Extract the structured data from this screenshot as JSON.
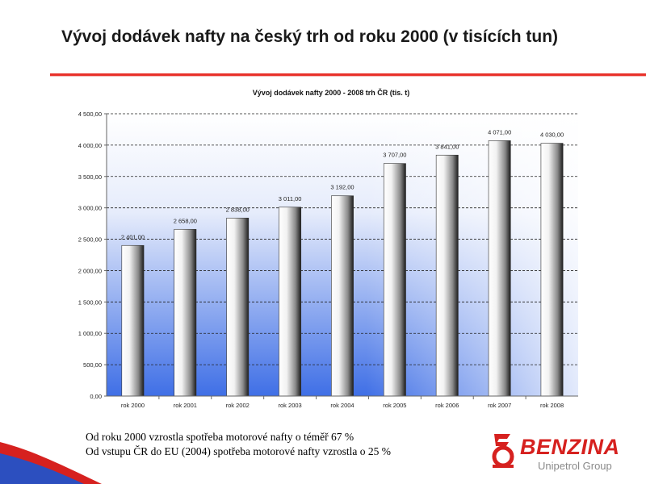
{
  "slide": {
    "title": "Vývoj dodávek nafty na český trh od roku 2000 (v tisících tun)",
    "notes": [
      "Od roku 2000 vzrostla spotřeba motorové nafty o téměř 67 %",
      "Od vstupu ČR do EU (2004) spotřeba motorové nafty vzrostla o 25 %"
    ]
  },
  "brand": {
    "name": "BENZINA",
    "subtitle": "Unipetrol Group",
    "color": "#d6211f"
  },
  "colors": {
    "accent_rule": "#e8312a",
    "plot_gradient_top": "#ffffff",
    "plot_gradient_bottom": "#3f6fe6"
  },
  "chart_data": {
    "type": "bar",
    "title": "Vývoj dodávek nafty 2000 - 2008 trh ČR (tis. t)",
    "xlabel": "",
    "ylabel": "",
    "categories": [
      "rok 2000",
      "rok 2001",
      "rok 2002",
      "rok 2003",
      "rok 2004",
      "rok 2005",
      "rok 2006",
      "rok 2007",
      "rok 2008"
    ],
    "values": [
      2401,
      2658,
      2838,
      3011,
      3192,
      3707,
      3841,
      4071,
      4030
    ],
    "data_labels": [
      "2 401,00",
      "2 658,00",
      "2 838,00",
      "3 011,00",
      "3 192,00",
      "3 707,00",
      "3 841,00",
      "4 071,00",
      "4 030,00"
    ],
    "ylim": [
      0,
      4500
    ],
    "yticks": [
      0,
      500,
      1000,
      1500,
      2000,
      2500,
      3000,
      3500,
      4000,
      4500
    ],
    "ytick_labels": [
      "0,00",
      "500,00",
      "1 000,00",
      "1 500,00",
      "2 000,00",
      "2 500,00",
      "3 000,00",
      "3 500,00",
      "4 000,00",
      "4 500,00"
    ],
    "grid": true,
    "legend": "none"
  }
}
